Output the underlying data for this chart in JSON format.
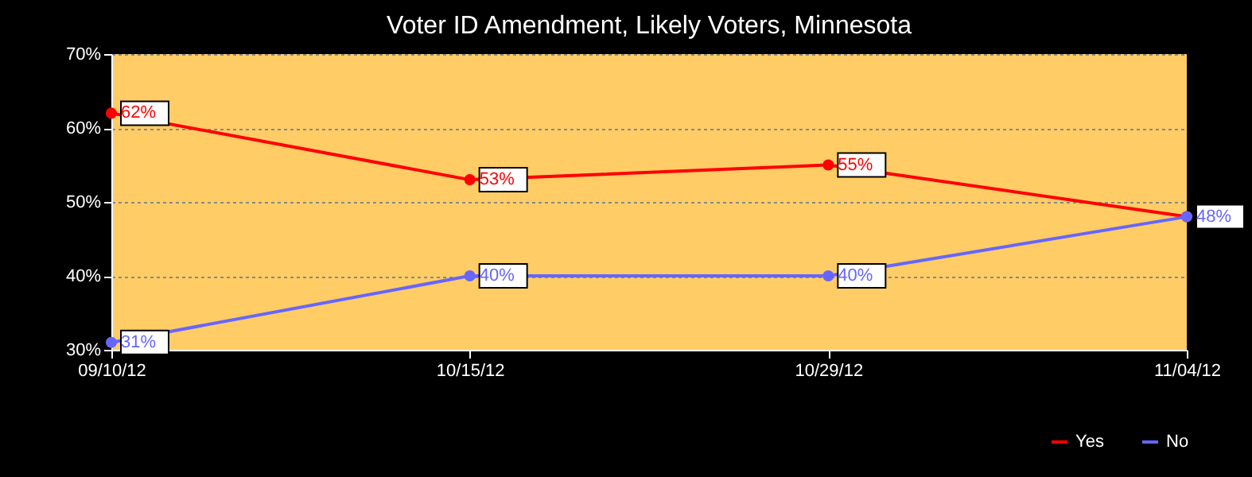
{
  "chart_data": {
    "type": "line",
    "title": "Voter ID Amendment, Likely Voters, Minnesota",
    "categories": [
      "09/10/12",
      "10/15/12",
      "10/29/12",
      "11/04/12"
    ],
    "series": [
      {
        "name": "Yes",
        "color": "#ff0000",
        "values": [
          62,
          53,
          55,
          48
        ],
        "value_labels": [
          "62%",
          "53%",
          "55%",
          null
        ]
      },
      {
        "name": "No",
        "color": "#6666ff",
        "values": [
          31,
          40,
          40,
          48
        ],
        "value_labels": [
          "31%",
          "40%",
          "40%",
          "48%"
        ]
      }
    ],
    "ylim": [
      30,
      70
    ],
    "yticks": [
      {
        "value": 30,
        "label": "30%"
      },
      {
        "value": 40,
        "label": "40%"
      },
      {
        "value": 50,
        "label": "50%"
      },
      {
        "value": 60,
        "label": "60%"
      },
      {
        "value": 70,
        "label": "70%"
      }
    ],
    "grid": "y",
    "legend": "bottom right",
    "marker": "circle",
    "line_style": "solid"
  }
}
